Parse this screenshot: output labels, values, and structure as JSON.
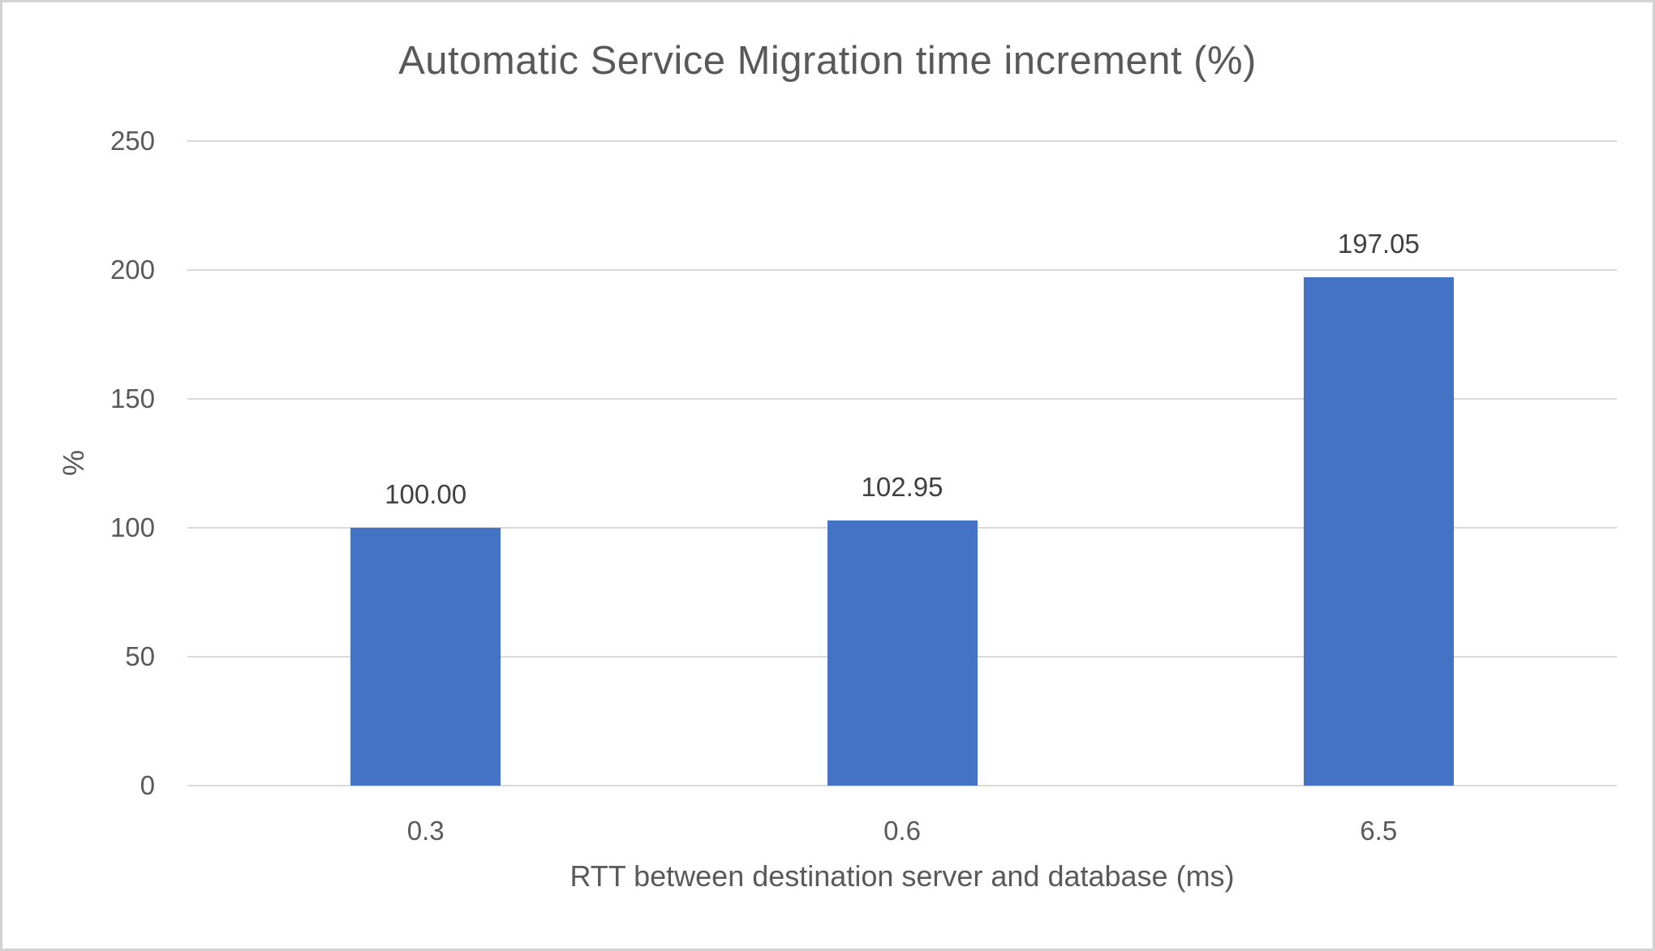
{
  "chart_data": {
    "type": "bar",
    "title": "Automatic Service Migration time increment (%)",
    "xlabel": "RTT between destination server and database (ms)",
    "ylabel": "%",
    "categories": [
      "0.3",
      "0.6",
      "6.5"
    ],
    "values": [
      100.0,
      102.95,
      197.05
    ],
    "data_labels": [
      "100.00",
      "102.95",
      "197.05"
    ],
    "ylim": [
      0,
      250
    ],
    "yticks": [
      0,
      50,
      100,
      150,
      200,
      250
    ],
    "grid": true,
    "legend": "none",
    "bar_color": "#4472c4",
    "gridline_color": "#d9d9d9",
    "axis_text_color": "#595959",
    "data_label_color": "#404040"
  }
}
